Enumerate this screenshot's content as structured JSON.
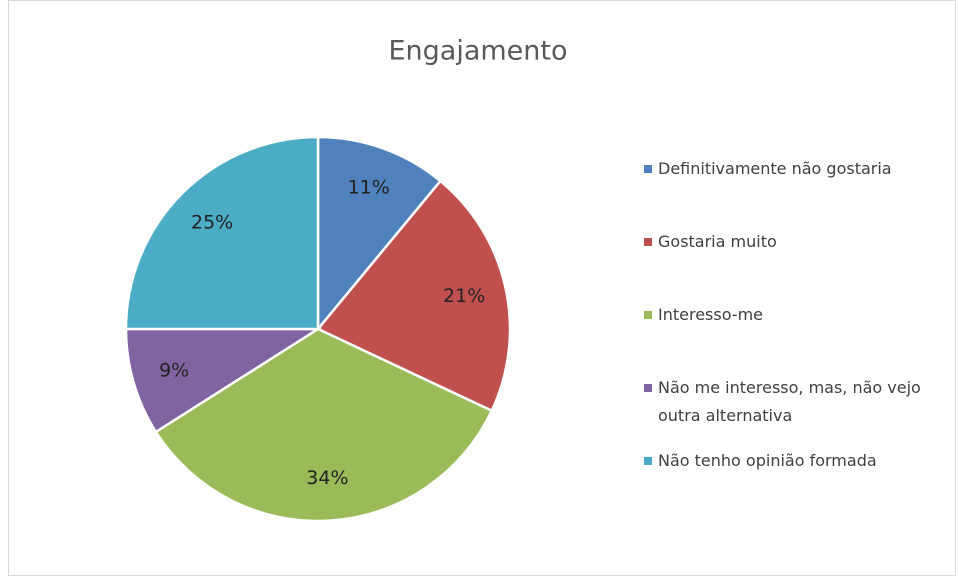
{
  "chart_data": {
    "type": "pie",
    "title": "Engajamento",
    "categories": [
      "Definitivamente não gostaria",
      "Gostaria muito",
      "Interesso-me",
      "Não me interesso, mas, não vejo outra alternativa",
      "Não tenho opinião formada"
    ],
    "values": [
      11,
      21,
      34,
      9,
      25
    ],
    "value_labels": [
      "11%",
      "21%",
      "34%",
      "9%",
      "25%"
    ],
    "colors": [
      "#4f81bd",
      "#c0504d",
      "#9bbb59",
      "#8064a2",
      "#4bacc6"
    ],
    "legend": "right"
  }
}
